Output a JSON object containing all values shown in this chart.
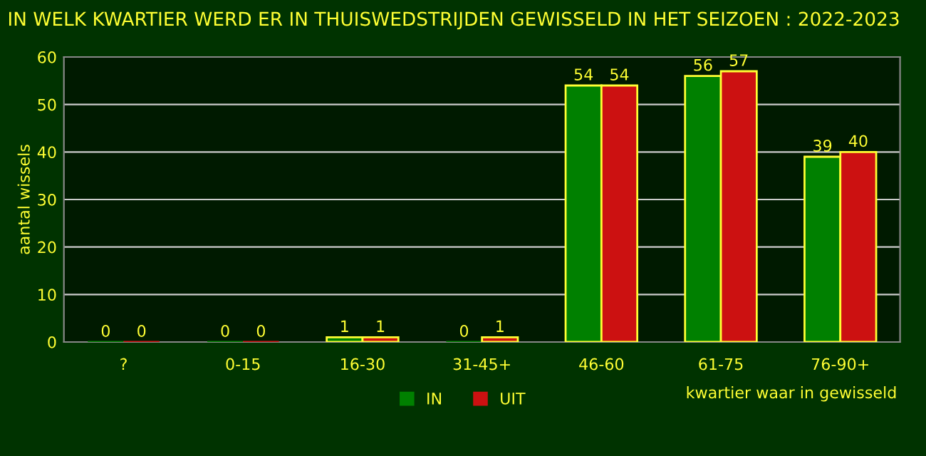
{
  "chart_data": {
    "type": "bar",
    "title": "IN WELK KWARTIER WERD ER IN THUISWEDSTRIJDEN GEWISSELD IN HET SEIZOEN : 2022-2023",
    "xlabel": "kwartier waar in gewisseld",
    "ylabel": "aantal wissels",
    "categories": [
      "?",
      "0-15",
      "16-30",
      "31-45+",
      "46-60",
      "61-75",
      "76-90+"
    ],
    "series": [
      {
        "name": "IN",
        "color": "#008000",
        "values": [
          0,
          0,
          1,
          0,
          54,
          56,
          39
        ]
      },
      {
        "name": "UIT",
        "color": "#cc1111",
        "values": [
          0,
          0,
          1,
          1,
          54,
          57,
          40
        ]
      }
    ],
    "ylim": [
      0,
      60
    ],
    "yticks": [
      0,
      10,
      20,
      30,
      40,
      50,
      60
    ],
    "grid": "y",
    "legend": "bottom",
    "data_labels": true
  }
}
